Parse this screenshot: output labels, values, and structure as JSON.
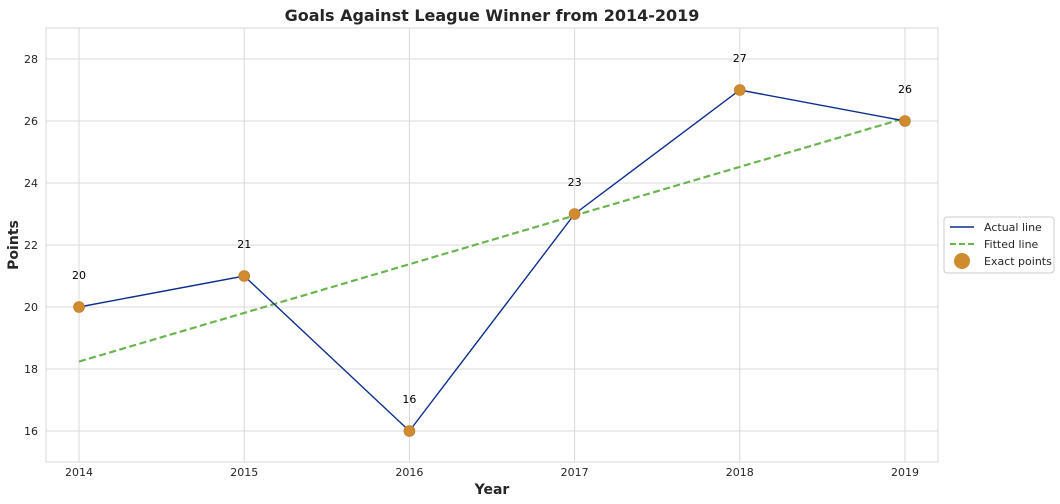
{
  "chart_data": {
    "type": "line",
    "title": "Goals Against League Winner from 2014-2019",
    "xlabel": "Year",
    "ylabel": "Points",
    "x": [
      2014,
      2015,
      2016,
      2017,
      2018,
      2019
    ],
    "xticks": [
      "2014",
      "2015",
      "2016",
      "2017",
      "2018",
      "2019"
    ],
    "xlim": [
      2013.8,
      2019.2
    ],
    "ylim": [
      15,
      29
    ],
    "yticks": [
      16,
      18,
      20,
      22,
      24,
      26,
      28
    ],
    "grid": true,
    "legend_position": "center-right",
    "series": [
      {
        "name": "Actual line",
        "kind": "line",
        "color": "#0d2f8c",
        "values": [
          20,
          21,
          16,
          23,
          27,
          26
        ]
      },
      {
        "name": "Fitted line",
        "kind": "dashed-line",
        "color": "#6ab550",
        "values": [
          18.24,
          19.81,
          21.38,
          22.95,
          24.52,
          26.09
        ]
      },
      {
        "name": "Exact points",
        "kind": "scatter",
        "color": "#d08b2e",
        "values": [
          20,
          21,
          16,
          23,
          27,
          26
        ]
      }
    ],
    "data_labels": [
      "20",
      "21",
      "16",
      "23",
      "27",
      "26"
    ]
  }
}
